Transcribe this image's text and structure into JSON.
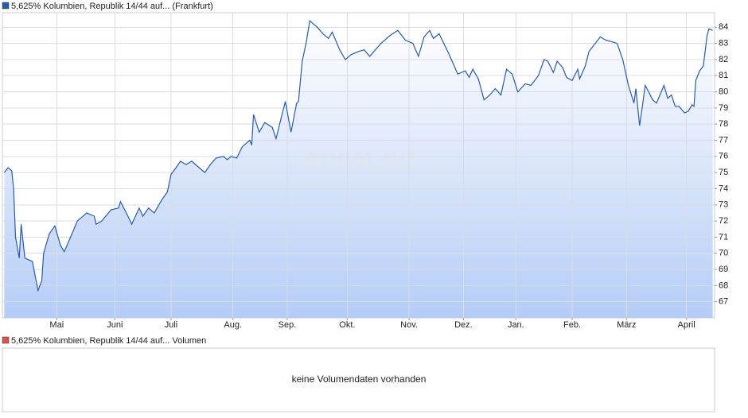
{
  "chart_data": {
    "type": "area",
    "series": [
      {
        "name": "5,625% Kolumbien, Republik 14/44 auf... (Frankfurt)",
        "color": "#2a5aa8",
        "x": [
          1,
          3,
          5,
          6,
          7,
          9,
          10,
          12,
          16,
          19,
          21,
          22,
          25,
          28,
          31,
          33,
          36,
          40,
          45,
          49,
          50,
          53,
          58,
          62,
          63,
          67,
          69,
          73,
          75,
          78,
          81,
          85,
          88,
          90,
          92,
          95,
          98,
          101,
          105,
          108,
          111,
          114,
          118,
          120,
          122,
          125,
          128,
          132,
          133,
          134,
          137,
          140,
          144,
          146,
          149,
          151,
          154,
          157,
          158,
          160,
          162,
          164,
          168,
          171,
          174,
          176,
          180,
          183,
          186,
          190,
          193,
          196,
          202,
          207,
          211,
          215,
          219,
          222,
          225,
          228,
          230,
          233,
          238,
          243,
          247,
          249,
          251,
          254,
          257,
          260,
          263,
          266,
          269,
          272,
          275,
          279,
          282,
          286,
          289,
          291,
          294,
          296,
          299,
          301,
          304,
          307,
          308,
          311,
          313,
          319,
          322,
          328,
          331,
          334,
          337,
          338,
          340,
          343,
          347,
          349,
          353,
          355,
          357,
          359,
          361,
          364,
          366,
          368,
          369,
          370,
          372,
          374,
          376,
          377,
          379
        ],
        "values": [
          75.0,
          75.3,
          75.1,
          74.0,
          71.0,
          69.7,
          71.8,
          69.7,
          69.5,
          67.7,
          68.3,
          70.0,
          71.2,
          71.7,
          70.5,
          70.1,
          70.9,
          72.0,
          72.5,
          72.3,
          71.8,
          72.0,
          72.7,
          72.8,
          73.2,
          72.3,
          71.8,
          72.8,
          72.3,
          72.8,
          72.5,
          73.3,
          73.8,
          74.9,
          75.2,
          75.7,
          75.5,
          75.7,
          75.3,
          75.0,
          75.5,
          75.9,
          76.0,
          75.8,
          76.0,
          75.9,
          76.6,
          77.0,
          76.7,
          78.6,
          77.5,
          78.1,
          77.8,
          77.1,
          78.5,
          79.4,
          77.5,
          79.3,
          79.4,
          81.9,
          83.0,
          84.4,
          84.0,
          83.6,
          83.3,
          83.7,
          82.6,
          82.0,
          82.3,
          82.5,
          82.6,
          82.2,
          83.0,
          83.5,
          83.8,
          83.2,
          83.0,
          82.2,
          83.4,
          83.8,
          83.3,
          83.6,
          82.4,
          81.1,
          81.3,
          80.9,
          81.4,
          80.8,
          79.5,
          79.8,
          80.2,
          79.8,
          81.4,
          81.1,
          80.0,
          80.5,
          80.4,
          81.0,
          82.0,
          81.9,
          81.2,
          81.9,
          81.5,
          80.9,
          80.7,
          81.4,
          80.8,
          81.6,
          82.5,
          83.4,
          83.2,
          83.0,
          82.0,
          80.4,
          79.3,
          80.2,
          77.9,
          80.4,
          79.5,
          79.3,
          80.4,
          79.6,
          79.8,
          79.1,
          79.1,
          78.7,
          78.8,
          79.2,
          79.1,
          80.7,
          81.3,
          81.6,
          83.5,
          83.9,
          83.8
        ]
      }
    ],
    "xlim": [
      0,
      380
    ],
    "xticks": [
      {
        "value": 29,
        "label": "Mai"
      },
      {
        "value": 60,
        "label": "Juni"
      },
      {
        "value": 90,
        "label": "Juli"
      },
      {
        "value": 123,
        "label": "Aug."
      },
      {
        "value": 152,
        "label": "Sep."
      },
      {
        "value": 184,
        "label": "Okt."
      },
      {
        "value": 217,
        "label": "Nov."
      },
      {
        "value": 246,
        "label": "Dez."
      },
      {
        "value": 274,
        "label": "Jan."
      },
      {
        "value": 304,
        "label": "Feb."
      },
      {
        "value": 333,
        "label": "März"
      },
      {
        "value": 365,
        "label": "April"
      }
    ],
    "ylim": [
      66.0,
      84.9
    ],
    "yticks": [
      67,
      68,
      69,
      70,
      71,
      72,
      73,
      74,
      75,
      76,
      77,
      78,
      79,
      80,
      81,
      82,
      83,
      84
    ],
    "grid": true,
    "watermark": "ARIVA.DE"
  },
  "volume_panel": {
    "title": "5,625% Kolumbien, Republik 14/44 auf... Volumen",
    "color": "#d9534f",
    "message": "keine Volumendaten vorhanden"
  }
}
